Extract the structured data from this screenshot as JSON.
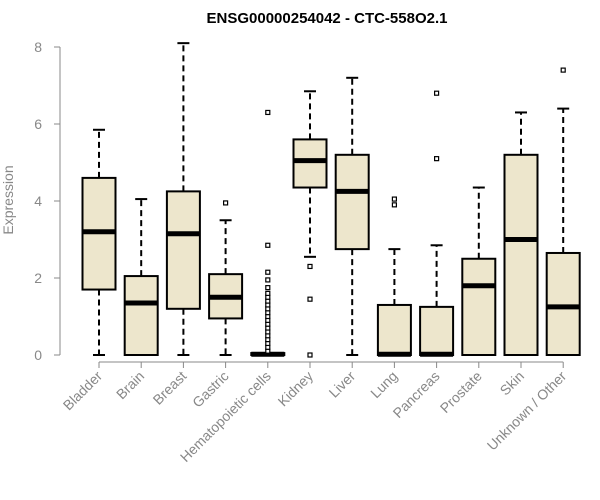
{
  "chart_data": {
    "type": "boxplot",
    "title": "ENSG00000254042 - CTC-558O2.1",
    "xlabel": "",
    "ylabel": "Expression",
    "ylim": [
      0,
      8
    ],
    "yticks": [
      0,
      2,
      4,
      6,
      8
    ],
    "colors": {
      "box_fill": "#ede6cc",
      "stroke": "#000000",
      "axis": "#888888",
      "outlier": "#000000"
    },
    "categories": [
      "Bladder",
      "Brain",
      "Breast",
      "Gastric",
      "Hematopoietic cells",
      "Kidney",
      "Liver",
      "Lung",
      "Pancreas",
      "Prostate",
      "Skin",
      "Unknown / Other"
    ],
    "boxes": [
      {
        "category": "Bladder",
        "min": 0,
        "q1": 1.7,
        "median": 3.2,
        "q3": 4.6,
        "max": 5.85,
        "outliers": []
      },
      {
        "category": "Brain",
        "min": 0,
        "q1": 0,
        "median": 1.35,
        "q3": 2.05,
        "max": 4.05,
        "outliers": []
      },
      {
        "category": "Breast",
        "min": 0,
        "q1": 1.2,
        "median": 3.15,
        "q3": 4.25,
        "max": 8.1,
        "outliers": []
      },
      {
        "category": "Gastric",
        "min": 0,
        "q1": 0.95,
        "median": 1.5,
        "q3": 2.1,
        "max": 3.5,
        "outliers": [
          3.95
        ]
      },
      {
        "category": "Hematopoietic cells",
        "min": 0,
        "q1": 0,
        "median": 0.02,
        "q3": 0.05,
        "max": 0.05,
        "outliers": [
          0.1,
          0.2,
          0.3,
          0.4,
          0.5,
          0.6,
          0.7,
          0.8,
          0.9,
          1.0,
          1.1,
          1.2,
          1.3,
          1.4,
          1.5,
          1.6,
          1.75,
          1.95,
          2.15,
          2.85,
          6.3
        ]
      },
      {
        "category": "Kidney",
        "min": 2.55,
        "q1": 4.35,
        "median": 5.05,
        "q3": 5.6,
        "max": 6.85,
        "outliers": [
          2.3,
          1.45,
          0
        ]
      },
      {
        "category": "Liver",
        "min": 0,
        "q1": 2.75,
        "median": 4.25,
        "q3": 5.2,
        "max": 7.2,
        "outliers": []
      },
      {
        "category": "Lung",
        "min": 0,
        "q1": 0,
        "median": 0.02,
        "q3": 1.3,
        "max": 2.75,
        "outliers": [
          3.9,
          4.05
        ]
      },
      {
        "category": "Pancreas",
        "min": 0,
        "q1": 0,
        "median": 0.02,
        "q3": 1.25,
        "max": 2.85,
        "outliers": [
          5.1,
          6.8
        ]
      },
      {
        "category": "Prostate",
        "min": 0,
        "q1": 0,
        "median": 1.8,
        "q3": 2.5,
        "max": 4.35,
        "outliers": []
      },
      {
        "category": "Skin",
        "min": 0,
        "q1": 0,
        "median": 3.0,
        "q3": 5.2,
        "max": 6.3,
        "outliers": []
      },
      {
        "category": "Unknown / Other",
        "min": 0,
        "q1": 0,
        "median": 1.25,
        "q3": 2.65,
        "max": 6.4,
        "outliers": [
          7.4
        ]
      }
    ]
  }
}
